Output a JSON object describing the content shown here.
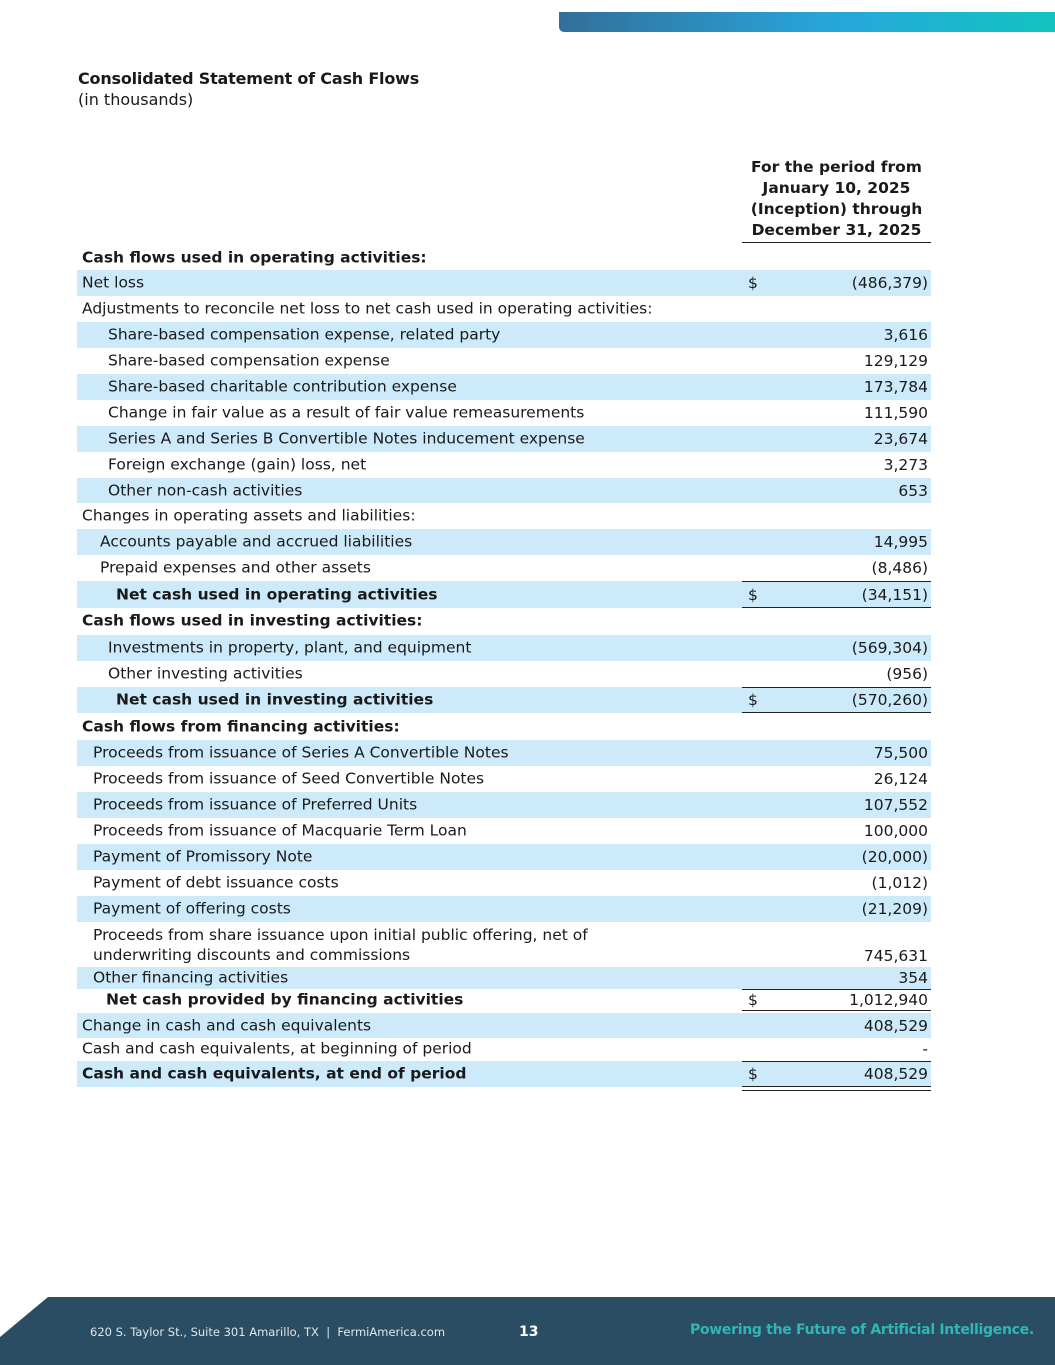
{
  "header": {
    "title": "Consolidated Statement of Cash Flows",
    "subtitle": "(in thousands)",
    "column_heading": "For the period from January 10, 2025 (Inception) through December 31, 2025"
  },
  "accent_colors": {
    "band": "#cdeafb",
    "footer": "#2b4d63",
    "tagline": "#2fb7b5"
  },
  "rows": [
    {
      "label": "Cash flows used in operating activities:",
      "dollar": "",
      "value": ""
    },
    {
      "label": "Net loss",
      "dollar": "$",
      "value": "(486,379)"
    },
    {
      "label": "Adjustments to reconcile net loss to net cash used in operating activities:",
      "dollar": "",
      "value": ""
    },
    {
      "label": "Share-based compensation expense, related party",
      "dollar": "",
      "value": "3,616"
    },
    {
      "label": "Share-based compensation expense",
      "dollar": "",
      "value": "129,129"
    },
    {
      "label": "Share-based charitable contribution expense",
      "dollar": "",
      "value": "173,784"
    },
    {
      "label": "Change in fair value as a result of fair value remeasurements",
      "dollar": "",
      "value": "111,590"
    },
    {
      "label": "Series A and Series B Convertible Notes inducement expense",
      "dollar": "",
      "value": "23,674"
    },
    {
      "label": "Foreign exchange (gain) loss, net",
      "dollar": "",
      "value": "3,273"
    },
    {
      "label": "Other non-cash activities",
      "dollar": "",
      "value": "653"
    },
    {
      "label": "Changes in operating assets and liabilities:",
      "dollar": "",
      "value": ""
    },
    {
      "label": "Accounts payable and accrued liabilities",
      "dollar": "",
      "value": "14,995"
    },
    {
      "label": "Prepaid expenses and other assets",
      "dollar": "",
      "value": "(8,486)"
    },
    {
      "label": "Net cash used in operating activities",
      "dollar": "$",
      "value": "(34,151)"
    },
    {
      "label": "Cash flows used in investing activities:",
      "dollar": "",
      "value": ""
    },
    {
      "label": "Investments in property, plant, and equipment",
      "dollar": "",
      "value": "(569,304)"
    },
    {
      "label": "Other investing activities",
      "dollar": "",
      "value": "(956)"
    },
    {
      "label": "Net cash used in investing activities",
      "dollar": "$",
      "value": "(570,260)"
    },
    {
      "label": "Cash flows from financing activities:",
      "dollar": "",
      "value": ""
    },
    {
      "label": "Proceeds from issuance of Series A Convertible Notes",
      "dollar": "",
      "value": "75,500"
    },
    {
      "label": "Proceeds from issuance of Seed Convertible Notes",
      "dollar": "",
      "value": "26,124"
    },
    {
      "label": "Proceeds from issuance of Preferred Units",
      "dollar": "",
      "value": "107,552"
    },
    {
      "label": "Proceeds from issuance of Macquarie Term Loan",
      "dollar": "",
      "value": "100,000"
    },
    {
      "label": "Payment of Promissory Note",
      "dollar": "",
      "value": "(20,000)"
    },
    {
      "label": "Payment of debt issuance costs",
      "dollar": "",
      "value": "(1,012)"
    },
    {
      "label": "Payment of offering costs",
      "dollar": "",
      "value": "(21,209)"
    },
    {
      "label": "Proceeds from share issuance upon initial public offering, net of underwriting discounts and commissions",
      "dollar": "",
      "value": "745,631"
    },
    {
      "label": "Other financing activities",
      "dollar": "",
      "value": "354"
    },
    {
      "label": "Net cash provided by financing activities",
      "dollar": "$",
      "value": "1,012,940"
    },
    {
      "label": "Change in cash and cash equivalents",
      "dollar": "",
      "value": "408,529"
    },
    {
      "label": "Cash and cash equivalents, at beginning of period",
      "dollar": "",
      "value": "-"
    },
    {
      "label": "Cash and cash equivalents, at end of period",
      "dollar": "$",
      "value": "408,529"
    }
  ],
  "footer": {
    "address": "620 S. Taylor St., Suite 301 Amarillo, TX  |  FermiAmerica.com",
    "page_number": "13",
    "tagline": "Powering the Future of Artificial Intelligence."
  }
}
